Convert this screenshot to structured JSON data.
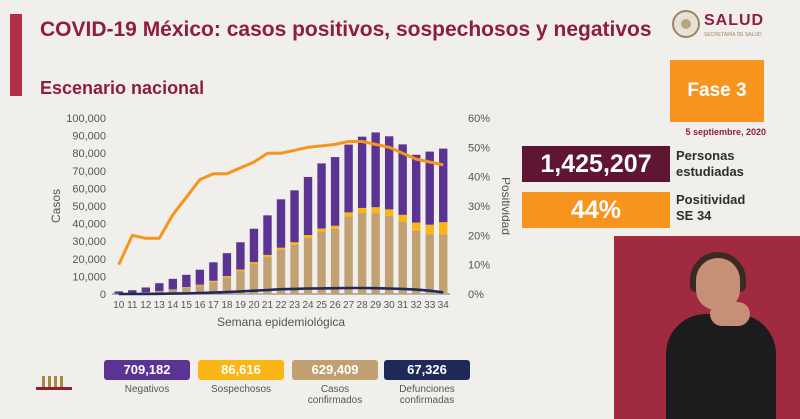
{
  "header": {
    "title": "COVID-19 México: casos positivos, sospechosos y negativos",
    "subtitle": "Escenario nacional",
    "logo_text": "SALUD",
    "logo_subtext": "SECRETARÍA DE SALUD"
  },
  "phase": {
    "label": "Fase 3",
    "date": "5 septiembre, 2020"
  },
  "stats": {
    "studied_value": "1,425,207",
    "studied_label_line1": "Personas",
    "studied_label_line2": "estudiadas",
    "positivity_value": "44%",
    "positivity_label_line1": "Positividad",
    "positivity_label_line2": "SE 34"
  },
  "legend": {
    "negativos_value": "709,182",
    "negativos_label": "Negativos",
    "sospechosos_value": "86,616",
    "sospechosos_label": "Sospechosos",
    "confirmados_value": "629,409",
    "confirmados_label_line1": "Casos",
    "confirmados_label_line2": "confirmados",
    "defunciones_value": "67,326",
    "defunciones_label_line1": "Defunciones",
    "defunciones_label_line2": "confirmadas"
  },
  "colors": {
    "negativos": "#5b3392",
    "sospechosos": "#fbb515",
    "confirmados": "#c1a072",
    "defunciones": "#1f2a5b",
    "positividad": "#f7941d",
    "title": "#8e1f3a"
  },
  "chart_data": {
    "type": "bar",
    "stacked": true,
    "title": "",
    "xlabel": "Semana epidemiológica",
    "ylabel": "Casos",
    "y2label": "Positividad",
    "categories": [
      "10",
      "11",
      "12",
      "13",
      "14",
      "15",
      "16",
      "17",
      "18",
      "19",
      "20",
      "21",
      "22",
      "23",
      "24",
      "25",
      "26",
      "27",
      "28",
      "29",
      "30",
      "31",
      "32",
      "33",
      "34"
    ],
    "ylim": [
      0,
      100000
    ],
    "yticks": [
      0,
      10000,
      20000,
      30000,
      40000,
      50000,
      60000,
      70000,
      80000,
      90000,
      100000
    ],
    "ytick_labels": [
      "0",
      "10,000",
      "20,000",
      "30,000",
      "40,000",
      "50,000",
      "60,000",
      "70,000",
      "80,000",
      "90,000",
      "100,000"
    ],
    "y2lim": [
      0,
      60
    ],
    "y2ticks": [
      0,
      10,
      20,
      30,
      40,
      50,
      60
    ],
    "y2tick_labels": [
      "0%",
      "10%",
      "20%",
      "30%",
      "40%",
      "50%",
      "60%"
    ],
    "series": [
      {
        "name": "Casos confirmados",
        "kind": "bar",
        "values": [
          150,
          400,
          900,
          1500,
          2400,
          3600,
          4900,
          7000,
          9500,
          13000,
          17000,
          21000,
          25000,
          28000,
          32000,
          35500,
          37000,
          44000,
          46000,
          46000,
          44500,
          41000,
          36000,
          34000,
          34000
        ]
      },
      {
        "name": "Sospechosos",
        "kind": "bar",
        "values": [
          20,
          50,
          100,
          150,
          200,
          300,
          400,
          500,
          700,
          900,
          1100,
          1200,
          1300,
          1400,
          1500,
          1700,
          1800,
          2400,
          2900,
          3300,
          3600,
          4000,
          4600,
          5400,
          6800
        ]
      },
      {
        "name": "Negativos",
        "kind": "bar",
        "values": [
          1300,
          1700,
          2700,
          4500,
          6000,
          7000,
          8500,
          10500,
          13000,
          15500,
          19000,
          22500,
          27500,
          29500,
          33000,
          37000,
          39000,
          38500,
          40500,
          42500,
          41500,
          40000,
          38500,
          41500,
          41800
        ]
      },
      {
        "name": "Defunciones confirmadas",
        "kind": "line",
        "values": [
          10,
          20,
          60,
          120,
          200,
          350,
          500,
          800,
          1100,
          1500,
          1900,
          2300,
          2700,
          2900,
          3100,
          3200,
          3300,
          3400,
          3400,
          3300,
          3100,
          2900,
          2500,
          1900,
          900
        ]
      },
      {
        "name": "Positividad",
        "kind": "line",
        "axis": "y2",
        "values": [
          10,
          20,
          19,
          19,
          27,
          33,
          39,
          41,
          41,
          43,
          45,
          48,
          48,
          49,
          50,
          50.5,
          51,
          52,
          52,
          51,
          50,
          48,
          46,
          45,
          44
        ]
      }
    ],
    "grid": false
  }
}
